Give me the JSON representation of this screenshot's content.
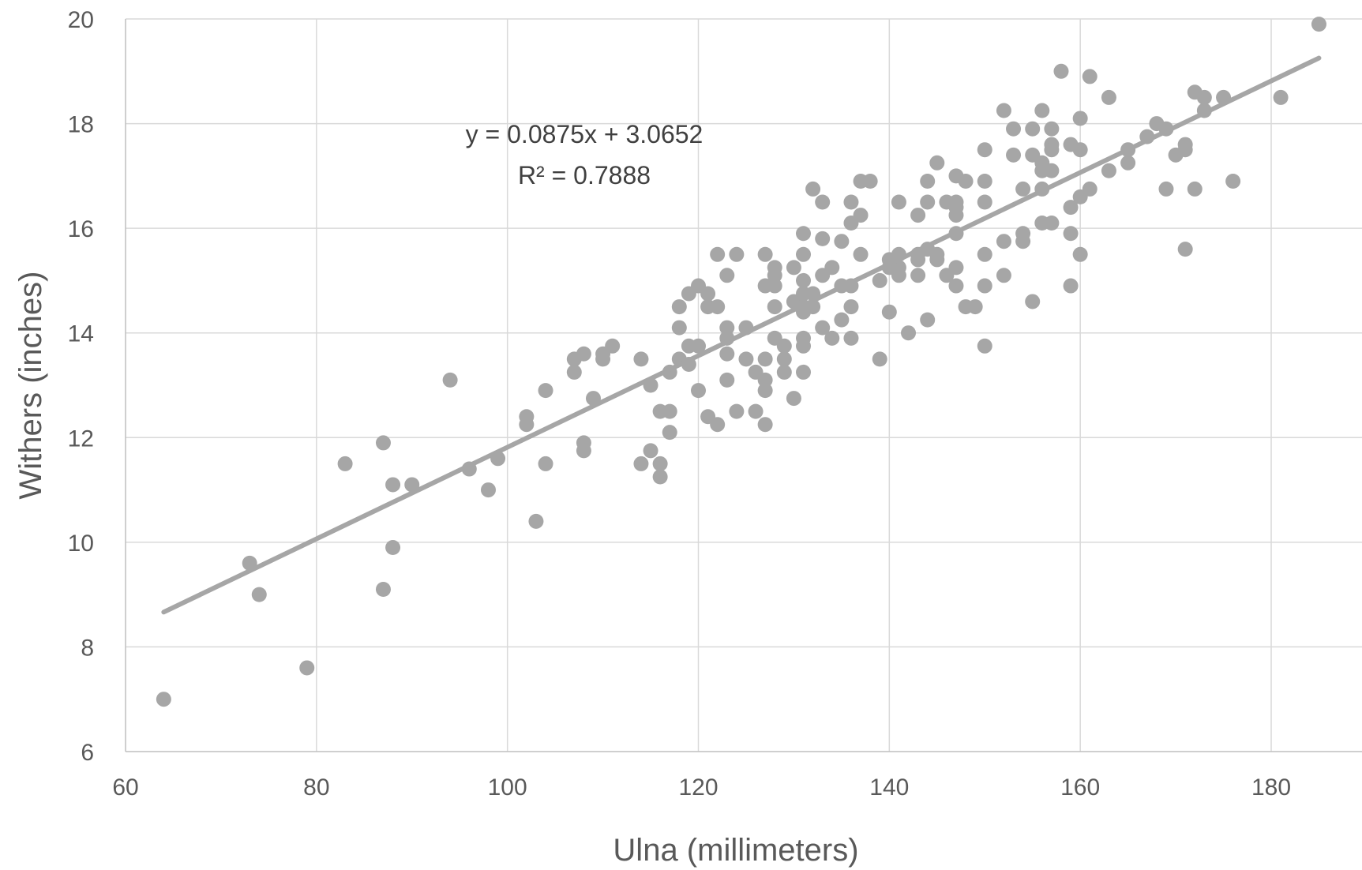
{
  "chart_data": {
    "type": "scatter",
    "xlabel": "Ulna (millimeters)",
    "ylabel": "Withers (inches)",
    "xlim": [
      60,
      190
    ],
    "ylim": [
      6,
      20
    ],
    "x_ticks": [
      60,
      80,
      100,
      120,
      140,
      160,
      180
    ],
    "y_ticks": [
      6,
      8,
      10,
      12,
      14,
      16,
      18,
      20
    ],
    "grid": true,
    "legend": "none",
    "point_color": "#a6a6a6",
    "trendline": {
      "type": "linear",
      "slope": 0.0875,
      "intercept": 3.0652,
      "x_range": [
        64,
        185
      ],
      "color": "#a6a6a6",
      "equation_text": "y = 0.0875x + 3.0652",
      "r2_text": "R² = 0.7888"
    },
    "points": [
      [
        64,
        7.0
      ],
      [
        73,
        9.6
      ],
      [
        74,
        9.0
      ],
      [
        79,
        7.6
      ],
      [
        83,
        11.5
      ],
      [
        87,
        11.9
      ],
      [
        87,
        9.1
      ],
      [
        88,
        11.1
      ],
      [
        88,
        9.9
      ],
      [
        90,
        11.1
      ],
      [
        94,
        13.1
      ],
      [
        96,
        11.4
      ],
      [
        98,
        11.0
      ],
      [
        99,
        11.6
      ],
      [
        102,
        12.4
      ],
      [
        102,
        12.25
      ],
      [
        103,
        10.4
      ],
      [
        104,
        12.9
      ],
      [
        104,
        11.5
      ],
      [
        107,
        13.5
      ],
      [
        107,
        13.25
      ],
      [
        108,
        13.6
      ],
      [
        108,
        11.9
      ],
      [
        108,
        11.75
      ],
      [
        109,
        12.75
      ],
      [
        110,
        13.6
      ],
      [
        110,
        13.5
      ],
      [
        111,
        13.75
      ],
      [
        114,
        13.5
      ],
      [
        114,
        11.5
      ],
      [
        115,
        13.0
      ],
      [
        115,
        11.75
      ],
      [
        116,
        12.5
      ],
      [
        116,
        11.5
      ],
      [
        116,
        11.25
      ],
      [
        117,
        13.25
      ],
      [
        117,
        12.5
      ],
      [
        117,
        12.1
      ],
      [
        118,
        14.5
      ],
      [
        118,
        14.1
      ],
      [
        118,
        13.5
      ],
      [
        119,
        14.75
      ],
      [
        119,
        13.75
      ],
      [
        119,
        13.4
      ],
      [
        120,
        14.9
      ],
      [
        120,
        13.75
      ],
      [
        120,
        12.9
      ],
      [
        121,
        14.75
      ],
      [
        121,
        14.5
      ],
      [
        121,
        12.4
      ],
      [
        122,
        15.5
      ],
      [
        122,
        14.5
      ],
      [
        122,
        12.25
      ],
      [
        123,
        15.1
      ],
      [
        123,
        14.1
      ],
      [
        123,
        13.9
      ],
      [
        123,
        13.6
      ],
      [
        123,
        13.1
      ],
      [
        124,
        15.5
      ],
      [
        124,
        12.5
      ],
      [
        125,
        14.1
      ],
      [
        125,
        13.5
      ],
      [
        126,
        13.25
      ],
      [
        126,
        12.5
      ],
      [
        127,
        15.5
      ],
      [
        127,
        14.9
      ],
      [
        127,
        13.5
      ],
      [
        127,
        13.1
      ],
      [
        127,
        12.9
      ],
      [
        127,
        12.25
      ],
      [
        128,
        15.25
      ],
      [
        128,
        15.1
      ],
      [
        128,
        14.9
      ],
      [
        128,
        14.5
      ],
      [
        128,
        13.9
      ],
      [
        129,
        13.75
      ],
      [
        129,
        13.5
      ],
      [
        129,
        13.25
      ],
      [
        130,
        15.25
      ],
      [
        130,
        14.6
      ],
      [
        130,
        12.75
      ],
      [
        131,
        15.9
      ],
      [
        131,
        15.5
      ],
      [
        131,
        15.0
      ],
      [
        131,
        14.75
      ],
      [
        131,
        14.5
      ],
      [
        131,
        14.4
      ],
      [
        131,
        13.9
      ],
      [
        131,
        13.75
      ],
      [
        131,
        13.25
      ],
      [
        132,
        16.75
      ],
      [
        132,
        14.75
      ],
      [
        132,
        14.5
      ],
      [
        133,
        16.5
      ],
      [
        133,
        15.8
      ],
      [
        133,
        15.1
      ],
      [
        133,
        14.1
      ],
      [
        134,
        15.25
      ],
      [
        134,
        13.9
      ],
      [
        135,
        15.75
      ],
      [
        135,
        14.9
      ],
      [
        135,
        14.25
      ],
      [
        136,
        16.5
      ],
      [
        136,
        16.1
      ],
      [
        136,
        14.9
      ],
      [
        136,
        14.5
      ],
      [
        136,
        13.9
      ],
      [
        137,
        16.9
      ],
      [
        137,
        16.25
      ],
      [
        137,
        15.5
      ],
      [
        138,
        16.9
      ],
      [
        139,
        15.0
      ],
      [
        139,
        13.5
      ],
      [
        140,
        15.4
      ],
      [
        140,
        15.25
      ],
      [
        140,
        14.4
      ],
      [
        141,
        16.5
      ],
      [
        141,
        15.5
      ],
      [
        141,
        15.25
      ],
      [
        141,
        15.1
      ],
      [
        142,
        14.0
      ],
      [
        143,
        16.25
      ],
      [
        143,
        15.5
      ],
      [
        143,
        15.4
      ],
      [
        143,
        15.1
      ],
      [
        144,
        16.9
      ],
      [
        144,
        16.5
      ],
      [
        144,
        15.6
      ],
      [
        144,
        14.25
      ],
      [
        145,
        17.25
      ],
      [
        145,
        15.5
      ],
      [
        145,
        15.4
      ],
      [
        146,
        16.5
      ],
      [
        146,
        15.1
      ],
      [
        147,
        17.0
      ],
      [
        147,
        16.5
      ],
      [
        147,
        16.4
      ],
      [
        147,
        16.25
      ],
      [
        147,
        15.9
      ],
      [
        147,
        15.25
      ],
      [
        147,
        14.9
      ],
      [
        148,
        16.9
      ],
      [
        148,
        14.5
      ],
      [
        149,
        14.5
      ],
      [
        150,
        17.5
      ],
      [
        150,
        16.9
      ],
      [
        150,
        16.5
      ],
      [
        150,
        15.5
      ],
      [
        150,
        14.9
      ],
      [
        150,
        13.75
      ],
      [
        152,
        18.25
      ],
      [
        152,
        15.75
      ],
      [
        152,
        15.1
      ],
      [
        153,
        17.9
      ],
      [
        153,
        17.4
      ],
      [
        154,
        16.75
      ],
      [
        154,
        15.9
      ],
      [
        154,
        15.75
      ],
      [
        155,
        17.9
      ],
      [
        155,
        17.4
      ],
      [
        155,
        14.6
      ],
      [
        156,
        18.25
      ],
      [
        156,
        17.25
      ],
      [
        156,
        17.1
      ],
      [
        156,
        16.75
      ],
      [
        156,
        16.1
      ],
      [
        157,
        17.9
      ],
      [
        157,
        17.6
      ],
      [
        157,
        17.5
      ],
      [
        157,
        17.1
      ],
      [
        157,
        16.1
      ],
      [
        158,
        19.0
      ],
      [
        159,
        17.6
      ],
      [
        159,
        16.4
      ],
      [
        159,
        15.9
      ],
      [
        159,
        14.9
      ],
      [
        160,
        18.1
      ],
      [
        160,
        17.5
      ],
      [
        160,
        16.6
      ],
      [
        160,
        15.5
      ],
      [
        161,
        18.9
      ],
      [
        161,
        16.75
      ],
      [
        163,
        18.5
      ],
      [
        163,
        17.1
      ],
      [
        165,
        17.5
      ],
      [
        165,
        17.25
      ],
      [
        167,
        17.75
      ],
      [
        168,
        18.0
      ],
      [
        169,
        17.9
      ],
      [
        169,
        16.75
      ],
      [
        170,
        17.4
      ],
      [
        171,
        17.6
      ],
      [
        171,
        17.5
      ],
      [
        171,
        15.6
      ],
      [
        172,
        18.6
      ],
      [
        172,
        16.75
      ],
      [
        173,
        18.5
      ],
      [
        173,
        18.25
      ],
      [
        175,
        18.5
      ],
      [
        176,
        16.9
      ],
      [
        181,
        18.5
      ],
      [
        185,
        19.9
      ]
    ]
  }
}
